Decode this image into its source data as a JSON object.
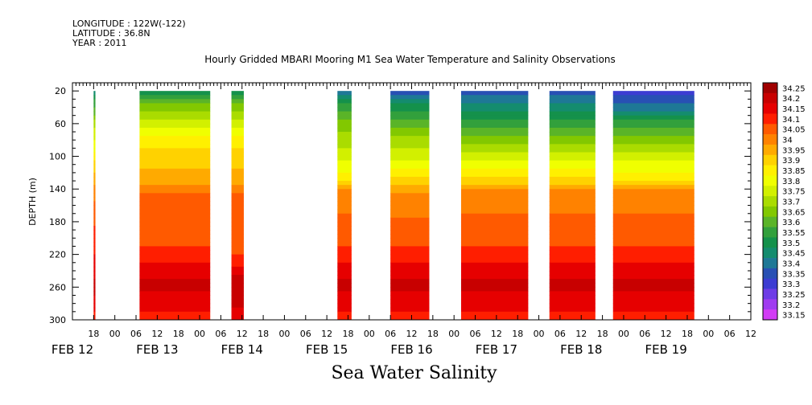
{
  "meta": {
    "longitude": "LONGITUDE : 122W(-122)",
    "latitude": "LATITUDE : 36.8N",
    "year": "YEAR : 2011"
  },
  "title": "Hourly Gridded MBARI Mooring M1 Sea Water Temperature and Salinity Observations",
  "caption": "Sea Water Salinity",
  "chart_data": {
    "type": "heatmap",
    "title": "Hourly Gridded MBARI Mooring M1 Sea Water Temperature and Salinity Observations",
    "xlabel": "",
    "ylabel": "DEPTH (m)",
    "colorbar_label": "Sea Water Salinity",
    "x_range_hours_since_feb12_00": [
      -12,
      180
    ],
    "y_range_depth_m": [
      300,
      10
    ],
    "y_ticks": [
      20,
      60,
      100,
      140,
      180,
      220,
      260,
      300
    ],
    "x_tick_hours": [
      "18",
      "00",
      "06",
      "12",
      "18",
      "00",
      "06",
      "12",
      "18",
      "00",
      "06",
      "12",
      "18",
      "00",
      "06",
      "12",
      "18",
      "00",
      "06",
      "12",
      "18",
      "00",
      "06",
      "12",
      "18",
      "00",
      "06",
      "12",
      "18",
      "00",
      "06",
      "12"
    ],
    "x_date_labels": [
      {
        "label": "FEB 12",
        "hour": -12
      },
      {
        "label": "FEB 13",
        "hour": 12
      },
      {
        "label": "FEB 14",
        "hour": 36
      },
      {
        "label": "FEB 15",
        "hour": 60
      },
      {
        "label": "FEB 16",
        "hour": 84
      },
      {
        "label": "FEB 17",
        "hour": 108
      },
      {
        "label": "FEB 18",
        "hour": 132
      },
      {
        "label": "FEB 19",
        "hour": 156
      }
    ],
    "colorbar_levels": [
      "34.25",
      "34.2",
      "34.15",
      "34.1",
      "34.05",
      "34",
      "33.95",
      "33.9",
      "33.85",
      "33.8",
      "33.75",
      "33.7",
      "33.65",
      "33.6",
      "33.55",
      "33.5",
      "33.45",
      "33.4",
      "33.35",
      "33.3",
      "33.25",
      "33.2",
      "33.15"
    ],
    "colorbar_colors": [
      "#a00000",
      "#c80000",
      "#e60000",
      "#ff1e00",
      "#ff5a00",
      "#ff8200",
      "#ffaa00",
      "#ffd200",
      "#fff000",
      "#f0ff00",
      "#d2f000",
      "#aadc00",
      "#82c800",
      "#5ab428",
      "#32a03c",
      "#14914b",
      "#148c6e",
      "#1e7896",
      "#2850b4",
      "#3c3cd2",
      "#6e3ce6",
      "#a03cf0",
      "#d23cf5"
    ],
    "data_blocks": [
      {
        "start_hour": -6,
        "end_hour": -5.5,
        "top_salinity": 33.45,
        "profile": [
          [
            20,
            33.45
          ],
          [
            60,
            33.7
          ],
          [
            100,
            33.85
          ],
          [
            140,
            34.0
          ],
          [
            200,
            34.1
          ],
          [
            240,
            34.15
          ],
          [
            260,
            34.2
          ],
          [
            300,
            34.1
          ]
        ]
      },
      {
        "start_hour": 7,
        "end_hour": 27,
        "top_salinity": 33.5,
        "profile": [
          [
            20,
            33.5
          ],
          [
            40,
            33.65
          ],
          [
            60,
            33.75
          ],
          [
            80,
            33.85
          ],
          [
            100,
            33.9
          ],
          [
            130,
            33.95
          ],
          [
            150,
            34.05
          ],
          [
            200,
            34.05
          ],
          [
            220,
            34.1
          ],
          [
            240,
            34.15
          ],
          [
            255,
            34.2
          ],
          [
            280,
            34.15
          ],
          [
            300,
            34.1
          ]
        ]
      },
      {
        "start_hour": 33,
        "end_hour": 36.5,
        "top_salinity": 33.5,
        "profile": [
          [
            20,
            33.5
          ],
          [
            40,
            33.65
          ],
          [
            60,
            33.75
          ],
          [
            80,
            33.85
          ],
          [
            100,
            33.9
          ],
          [
            130,
            33.95
          ],
          [
            150,
            34.05
          ],
          [
            210,
            34.05
          ],
          [
            230,
            34.1
          ],
          [
            250,
            34.2
          ],
          [
            275,
            34.2
          ],
          [
            300,
            34.15
          ]
        ]
      },
      {
        "start_hour": 63,
        "end_hour": 67,
        "top_salinity": 33.4,
        "profile": [
          [
            20,
            33.4
          ],
          [
            40,
            33.55
          ],
          [
            60,
            33.65
          ],
          [
            80,
            33.7
          ],
          [
            100,
            33.75
          ],
          [
            125,
            33.85
          ],
          [
            145,
            34.0
          ],
          [
            200,
            34.05
          ],
          [
            220,
            34.1
          ],
          [
            240,
            34.15
          ],
          [
            255,
            34.2
          ],
          [
            280,
            34.15
          ],
          [
            300,
            34.1
          ]
        ]
      },
      {
        "start_hour": 78,
        "end_hour": 89,
        "top_salinity": 33.35,
        "profile": [
          [
            20,
            33.35
          ],
          [
            40,
            33.5
          ],
          [
            60,
            33.6
          ],
          [
            80,
            33.7
          ],
          [
            100,
            33.75
          ],
          [
            120,
            33.85
          ],
          [
            150,
            34.0
          ],
          [
            200,
            34.05
          ],
          [
            220,
            34.1
          ],
          [
            240,
            34.15
          ],
          [
            255,
            34.2
          ],
          [
            280,
            34.15
          ],
          [
            300,
            34.1
          ]
        ]
      },
      {
        "start_hour": 98,
        "end_hour": 117,
        "top_salinity": 33.35,
        "profile": [
          [
            20,
            33.35
          ],
          [
            40,
            33.45
          ],
          [
            60,
            33.55
          ],
          [
            80,
            33.65
          ],
          [
            100,
            33.75
          ],
          [
            120,
            33.85
          ],
          [
            145,
            34.0
          ],
          [
            200,
            34.05
          ],
          [
            220,
            34.1
          ],
          [
            240,
            34.15
          ],
          [
            255,
            34.2
          ],
          [
            280,
            34.15
          ],
          [
            300,
            34.1
          ]
        ]
      },
      {
        "start_hour": 123,
        "end_hour": 136,
        "top_salinity": 33.35,
        "profile": [
          [
            20,
            33.35
          ],
          [
            40,
            33.45
          ],
          [
            60,
            33.55
          ],
          [
            80,
            33.65
          ],
          [
            100,
            33.75
          ],
          [
            120,
            33.85
          ],
          [
            145,
            34.0
          ],
          [
            200,
            34.05
          ],
          [
            220,
            34.1
          ],
          [
            240,
            34.15
          ],
          [
            255,
            34.2
          ],
          [
            280,
            34.15
          ],
          [
            300,
            34.1
          ]
        ]
      },
      {
        "start_hour": 141,
        "end_hour": 164,
        "top_salinity": 33.3,
        "profile": [
          [
            20,
            33.3
          ],
          [
            40,
            33.4
          ],
          [
            60,
            33.55
          ],
          [
            80,
            33.65
          ],
          [
            100,
            33.75
          ],
          [
            125,
            33.85
          ],
          [
            145,
            34.0
          ],
          [
            200,
            34.05
          ],
          [
            220,
            34.1
          ],
          [
            240,
            34.15
          ],
          [
            255,
            34.2
          ],
          [
            280,
            34.15
          ],
          [
            300,
            34.1
          ]
        ]
      }
    ]
  }
}
